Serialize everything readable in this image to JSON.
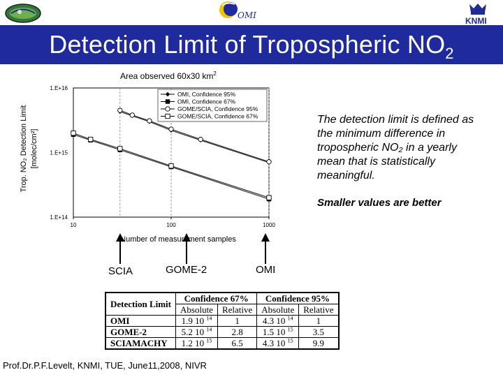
{
  "header": {
    "title_main": "Detection Limit of Tropospheric NO",
    "title_sub": "2",
    "logo_center_text": "OMI",
    "logo_right_text": "KNMI"
  },
  "chart_data": {
    "type": "line",
    "title_main": "Area observed 60x30 km",
    "title_sup": "2",
    "xlabel": "Number of measurement samples",
    "ylabel_line1": "Trop. NO₂ Detection Limit",
    "ylabel_line2": "[molec/cm²]",
    "x_scale": "log",
    "y_scale": "log",
    "xlim": [
      10,
      1000
    ],
    "ylim": [
      100000000000000.0,
      1e+16
    ],
    "x_tick_labels": [
      "10",
      "100",
      "1000"
    ],
    "x_ticks": [
      10,
      100,
      1000
    ],
    "y_tick_labels": [
      "1.E+16",
      "1.E+15",
      "1.E+14"
    ],
    "y_ticks": [
      1e+16,
      1000000000000000.0,
      100000000000000.0
    ],
    "vlines": [
      30,
      100,
      1000
    ],
    "grid": false,
    "legend_position": "top-right",
    "series": [
      {
        "name": "OMI, Confidence 95%",
        "marker": "filled-diamond",
        "x": [
          30,
          40,
          60,
          100,
          200,
          1000
        ],
        "y": [
          4300000000000000.0,
          3700000000000000.0,
          3000000000000000.0,
          2200000000000000.0,
          1550000000000000.0,
          700000000000000.0
        ]
      },
      {
        "name": "OMI, Confidence 67%",
        "marker": "filled-square",
        "x": [
          10,
          15,
          30,
          100,
          1000
        ],
        "y": [
          1900000000000000.0,
          1550000000000000.0,
          1100000000000000.0,
          600000000000000.0,
          190000000000000.0
        ]
      },
      {
        "name": "GOME/SCIA, Confidence 95%",
        "marker": "open-circle",
        "x": [
          30,
          40,
          60,
          100,
          200,
          1000
        ],
        "y": [
          4500000000000000.0,
          3800000000000000.0,
          3100000000000000.0,
          2300000000000000.0,
          1600000000000000.0,
          720000000000000.0
        ]
      },
      {
        "name": "GOME/SCIA, Confidence 67%",
        "marker": "open-square",
        "x": [
          10,
          15,
          30,
          100,
          1000
        ],
        "y": [
          2000000000000000.0,
          1600000000000000.0,
          1150000000000000.0,
          620000000000000.0,
          200000000000000.0
        ]
      }
    ]
  },
  "annotations": {
    "description": "The detection limit is defined as the minimum difference in tropospheric NO₂ in a yearly mean that is statistically meaningful.",
    "emphasis": "Smaller values are better",
    "arrow_labels": [
      "SCIA",
      "GOME-2",
      "OMI"
    ]
  },
  "table": {
    "header_row1": [
      "Detection Limit",
      "Confidence 67%",
      "Confidence 95%"
    ],
    "header_row2": [
      "Absolute",
      "Relative",
      "Absolute",
      "Relative"
    ],
    "rows": [
      {
        "name": "OMI",
        "abs67": "1.9 10",
        "abs67_exp": "14",
        "rel67": "1",
        "abs95": "4.3 10",
        "abs95_exp": "14",
        "rel95": "1"
      },
      {
        "name": "GOME-2",
        "abs67": "5.2 10",
        "abs67_exp": "14",
        "rel67": "2.8",
        "abs95": "1.5 10",
        "abs95_exp": "15",
        "rel95": "3.5"
      },
      {
        "name": "SCIAMACHY",
        "abs67": "1.2 10",
        "abs67_exp": "15",
        "rel67": "6.5",
        "abs95": "4.3 10",
        "abs95_exp": "15",
        "rel95": "9.9"
      }
    ]
  },
  "footer": {
    "text": "Prof.Dr.P.F.Levelt, KNMI, TUE, June11,2008, NIVR"
  },
  "colors": {
    "title_bar": "#1f2a9c",
    "title_text": "#ffffff",
    "series_line": "#333333",
    "vline": "#888888"
  }
}
